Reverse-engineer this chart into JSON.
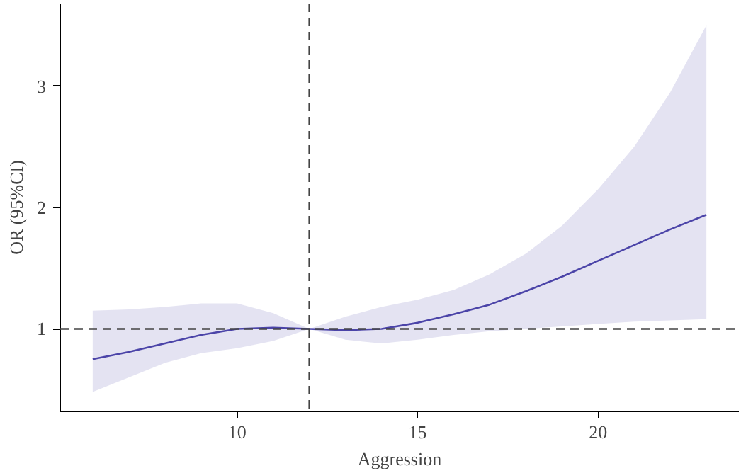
{
  "chart_data": {
    "type": "line",
    "xlabel": "Aggression",
    "ylabel": "OR (95%CI)",
    "x": [
      6,
      7,
      8,
      9,
      10,
      11,
      12,
      13,
      14,
      15,
      16,
      17,
      18,
      19,
      20,
      21,
      22,
      23
    ],
    "series": [
      {
        "color": "#4b44a8",
        "values": [
          0.75,
          0.81,
          0.88,
          0.95,
          1.0,
          1.01,
          1.0,
          0.99,
          1.0,
          1.05,
          1.12,
          1.2,
          1.31,
          1.43,
          1.56,
          1.69,
          1.82,
          1.94
        ],
        "lower": [
          0.48,
          0.6,
          0.72,
          0.8,
          0.84,
          0.9,
          1.0,
          0.91,
          0.88,
          0.91,
          0.95,
          0.98,
          1.0,
          1.02,
          1.04,
          1.06,
          1.07,
          1.08
        ],
        "upper": [
          1.15,
          1.16,
          1.18,
          1.21,
          1.21,
          1.13,
          1.0,
          1.1,
          1.18,
          1.24,
          1.32,
          1.45,
          1.62,
          1.85,
          2.15,
          2.5,
          2.95,
          3.5
        ]
      }
    ],
    "xlim": [
      5.1,
      23.9
    ],
    "ylim": [
      0.32,
      3.68
    ],
    "xticks": [
      10,
      15,
      20
    ],
    "yticks": [
      1,
      2,
      3
    ],
    "ref_lines": [
      {
        "axis": "y",
        "value": 1,
        "color": "#444444",
        "line_style": "dashed"
      },
      {
        "axis": "x",
        "value": 12,
        "color": "#444444",
        "line_style": "dashed"
      }
    ],
    "grid": false,
    "line_style": "solid",
    "marker": "none"
  }
}
